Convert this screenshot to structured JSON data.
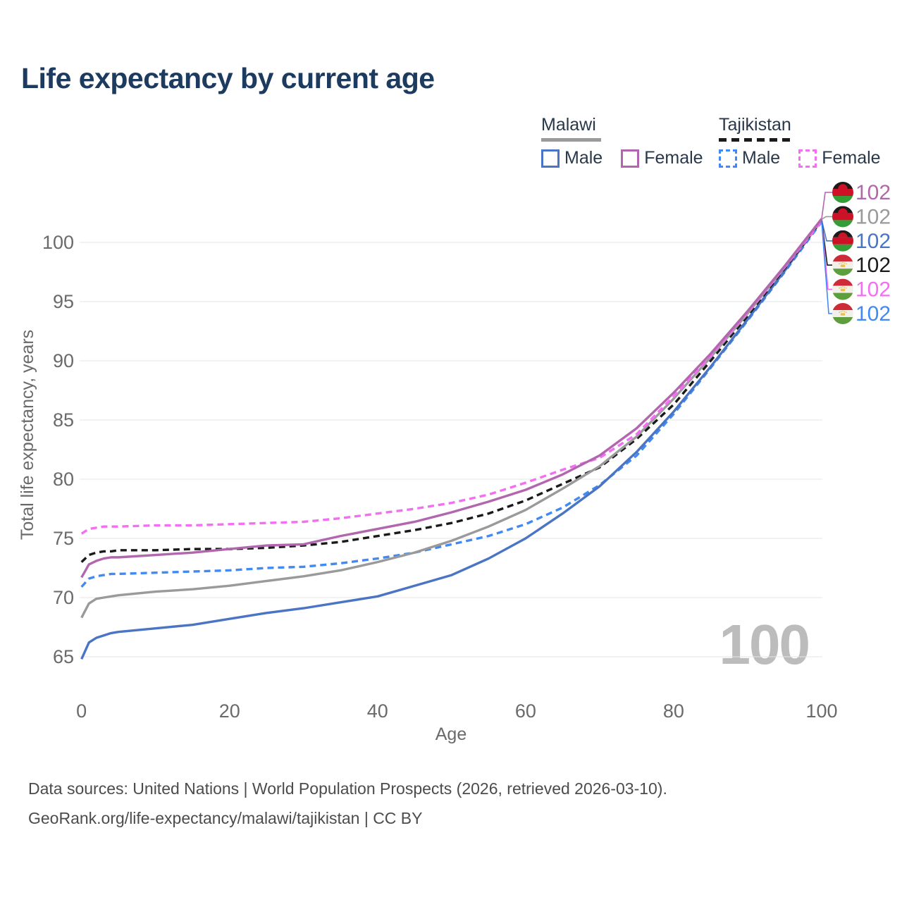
{
  "title": "Life expectancy by current age",
  "legend": {
    "groups": [
      {
        "label": "Malawi",
        "line_style": "solid",
        "underline_color": "#9a9a9a",
        "items": [
          {
            "label": "Male",
            "color": "#4a74c4"
          },
          {
            "label": "Female",
            "color": "#b266ae"
          }
        ]
      },
      {
        "label": "Tajikistan",
        "line_style": "dashed",
        "underline_color": "#1a1a1a",
        "items": [
          {
            "label": "Male",
            "color": "#4189f4"
          },
          {
            "label": "Female",
            "color": "#f36ef2"
          }
        ]
      }
    ]
  },
  "chart_data": {
    "type": "line",
    "title": "Life expectancy by current age",
    "xlabel": "Age",
    "ylabel": "Total life expectancy, years",
    "xlim": [
      0,
      100
    ],
    "ylim": [
      63.5,
      103.5
    ],
    "xticks": [
      0,
      20,
      40,
      60,
      80,
      100
    ],
    "yticks": [
      65,
      70,
      75,
      80,
      85,
      90,
      95,
      100
    ],
    "grid": "horizontal-only",
    "legend_position": "top-right",
    "x": [
      0,
      1,
      2,
      3,
      4,
      5,
      10,
      15,
      20,
      25,
      30,
      35,
      40,
      45,
      50,
      55,
      60,
      65,
      70,
      75,
      80,
      85,
      90,
      95,
      100
    ],
    "series": [
      {
        "id": "tajikistan-male",
        "country": "Tajikistan",
        "sex": "Male",
        "flag": "tajikistan",
        "color": "#4189f4",
        "dash": true,
        "values": [
          70.9,
          71.6,
          71.8,
          71.9,
          72.0,
          72.0,
          72.1,
          72.2,
          72.3,
          72.5,
          72.6,
          72.9,
          73.3,
          73.8,
          74.5,
          75.2,
          76.2,
          77.6,
          79.5,
          82.0,
          85.5,
          89.4,
          93.4,
          97.5,
          101.75
        ]
      },
      {
        "id": "malawi-male",
        "country": "Malawi",
        "sex": "Male",
        "flag": "malawi",
        "color": "#4a74c4",
        "dash": false,
        "values": [
          64.8,
          66.2,
          66.6,
          66.8,
          67.0,
          67.1,
          67.4,
          67.7,
          68.2,
          68.7,
          69.1,
          69.6,
          70.1,
          71.0,
          71.9,
          73.3,
          75.0,
          77.1,
          79.4,
          82.3,
          85.7,
          89.5,
          93.5,
          97.6,
          101.9
        ]
      },
      {
        "id": "tajikistan-both",
        "country": "Tajikistan",
        "sex": "Both sexes",
        "flag": "tajikistan",
        "color": "#1a1a1a",
        "dash": true,
        "values": [
          73.0,
          73.6,
          73.8,
          73.9,
          73.9,
          74.0,
          74.0,
          74.1,
          74.1,
          74.2,
          74.4,
          74.7,
          75.2,
          75.7,
          76.3,
          77.1,
          78.2,
          79.6,
          81.0,
          83.4,
          86.3,
          90.0,
          93.8,
          97.8,
          101.85
        ]
      },
      {
        "id": "malawi-both",
        "country": "Malawi",
        "sex": "Both sexes",
        "flag": "malawi",
        "color": "#9a9a9a",
        "dash": false,
        "values": [
          68.3,
          69.5,
          69.9,
          70.0,
          70.1,
          70.2,
          70.5,
          70.7,
          71.0,
          71.4,
          71.8,
          72.3,
          73.0,
          73.8,
          74.8,
          76.0,
          77.4,
          79.2,
          81.1,
          83.6,
          86.8,
          90.3,
          94.0,
          97.9,
          101.95
        ]
      },
      {
        "id": "tajikistan-female",
        "country": "Tajikistan",
        "sex": "Female",
        "flag": "tajikistan",
        "color": "#f36ef2",
        "dash": true,
        "values": [
          75.4,
          75.8,
          75.9,
          76.0,
          76.0,
          76.0,
          76.1,
          76.1,
          76.2,
          76.3,
          76.4,
          76.7,
          77.1,
          77.5,
          78.0,
          78.7,
          79.7,
          80.8,
          81.8,
          83.8,
          87.0,
          90.4,
          94.1,
          97.9,
          101.8
        ]
      },
      {
        "id": "malawi-female",
        "country": "Malawi",
        "sex": "Female",
        "flag": "malawi",
        "color": "#b266ae",
        "dash": false,
        "values": [
          71.7,
          72.8,
          73.1,
          73.3,
          73.4,
          73.4,
          73.6,
          73.8,
          74.1,
          74.4,
          74.5,
          75.2,
          75.8,
          76.4,
          77.2,
          78.1,
          79.1,
          80.4,
          82.0,
          84.3,
          87.3,
          90.6,
          94.2,
          98.0,
          102.0
        ]
      }
    ]
  },
  "annotations": {
    "age_indicator": "100",
    "end_labels": [
      {
        "series": "malawi-female",
        "label": "102"
      },
      {
        "series": "malawi-both",
        "label": "102"
      },
      {
        "series": "malawi-male",
        "label": "102"
      },
      {
        "series": "tajikistan-both",
        "label": "102"
      },
      {
        "series": "tajikistan-female",
        "label": "102"
      },
      {
        "series": "tajikistan-male",
        "label": "102"
      }
    ]
  },
  "footer": {
    "line1": "Data sources: United Nations | World Population Prospects (2026, retrieved 2026-03-10).",
    "line2": "GeoRank.org/life-expectancy/malawi/tajikistan | CC BY"
  }
}
